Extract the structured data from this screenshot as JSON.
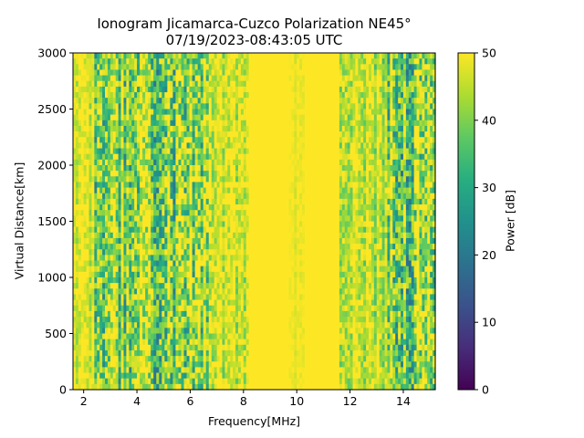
{
  "chart_data": {
    "type": "heatmap",
    "title": "Ionogram Jicamarca-Cuzco Polarization NE45°",
    "subtitle": "07/19/2023-08:43:05 UTC",
    "xlabel": "Frequency[MHz]",
    "ylabel": "Virtual Distance[km]",
    "xlim": [
      1.6,
      15.2
    ],
    "ylim": [
      0,
      3000
    ],
    "xticks": [
      2,
      4,
      6,
      8,
      10,
      12,
      14
    ],
    "yticks": [
      0,
      500,
      1000,
      1500,
      2000,
      2500,
      3000
    ],
    "colorbar": {
      "label": "Power [dB]",
      "range": [
        0,
        50
      ],
      "ticks": [
        0,
        10,
        20,
        30,
        40,
        50
      ],
      "colormap": "viridis"
    },
    "frequency_bands": [
      {
        "from": 1.6,
        "to": 2.4,
        "mean_power_db": 47
      },
      {
        "from": 2.4,
        "to": 4.0,
        "mean_power_db": 43
      },
      {
        "from": 4.0,
        "to": 6.8,
        "mean_power_db": 42
      },
      {
        "from": 6.8,
        "to": 8.2,
        "mean_power_db": 46
      },
      {
        "from": 8.2,
        "to": 9.7,
        "mean_power_db": 50
      },
      {
        "from": 9.7,
        "to": 10.3,
        "mean_power_db": 49
      },
      {
        "from": 10.3,
        "to": 11.6,
        "mean_power_db": 50
      },
      {
        "from": 11.6,
        "to": 13.4,
        "mean_power_db": 46
      },
      {
        "from": 13.4,
        "to": 15.2,
        "mean_power_db": 42
      }
    ],
    "grid": false,
    "legend": "colorbar-right"
  }
}
